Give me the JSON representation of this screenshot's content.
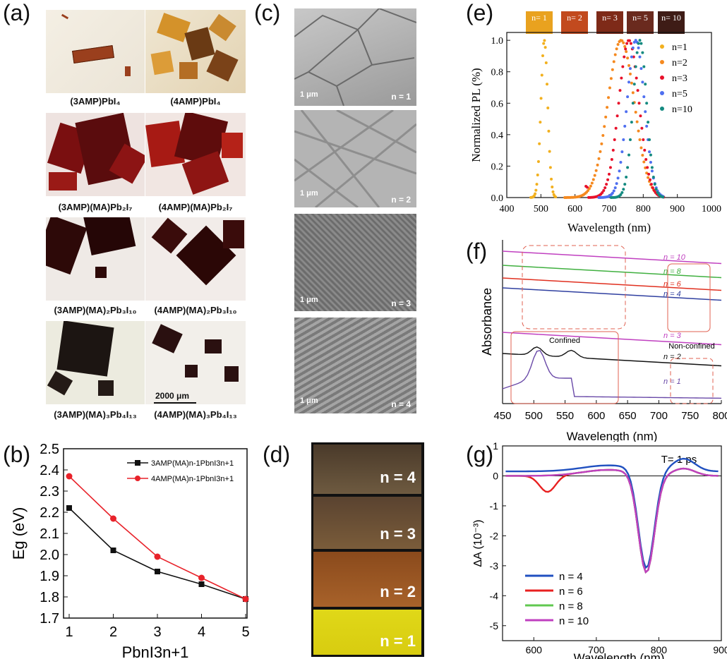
{
  "panels": {
    "a": {
      "label": "(a)",
      "captions": [
        "(3AMP)PbI₄",
        "(4AMP)PbI₄",
        "(3AMP)(MA)Pb₂I₇",
        "(4AMP)(MA)Pb₂I₇",
        "(3AMP)(MA)₂Pb₃I₁₀",
        "(4AMP)(MA)₂Pb₃I₁₀",
        "(3AMP)(MA)₃Pb₄I₁₃",
        "(4AMP)(MA)₃Pb₄I₁₃"
      ],
      "scalebar": "2000 μm"
    },
    "b": {
      "label": "(b)"
    },
    "c": {
      "label": "(c)",
      "scalebar": "1 μm",
      "images": [
        {
          "n": "n = 1"
        },
        {
          "n": "n = 2"
        },
        {
          "n": "n = 3"
        },
        {
          "n": "n = 4"
        }
      ]
    },
    "d": {
      "label": "(d)",
      "vials": [
        "n = 4",
        "n = 3",
        "n = 2",
        "n = 1"
      ]
    },
    "e": {
      "label": "(e)",
      "swatches": [
        "n= 1",
        "n= 2",
        "n= 3",
        "n= 5",
        "n= 10"
      ]
    },
    "f": {
      "label": "(f)"
    },
    "g": {
      "label": "(g)"
    }
  },
  "chart_data": [
    {
      "panel": "b",
      "type": "line",
      "xlabel": "PbnI3n+1",
      "ylabel": "Eg (eV)",
      "xlim": [
        1,
        5
      ],
      "ylim": [
        1.7,
        2.5
      ],
      "x": [
        1,
        2,
        3,
        4,
        5
      ],
      "xticks": [
        "1",
        "2",
        "3",
        "4",
        "5"
      ],
      "yticks": [
        "1.7",
        "1.8",
        "1.9",
        "2.0",
        "2.1",
        "2.2",
        "2.3",
        "2.4",
        "2.5"
      ],
      "legend_position": "top-right",
      "series": [
        {
          "name": "3AMP(MA)n-1PbnI3n+1",
          "color": "#111111",
          "marker": "square",
          "values": [
            2.22,
            2.02,
            1.92,
            1.86,
            1.79
          ]
        },
        {
          "name": "4AMP(MA)n-1PbnI3n+1",
          "color": "#e8222a",
          "marker": "circle",
          "values": [
            2.37,
            2.17,
            1.99,
            1.89,
            1.79
          ]
        }
      ]
    },
    {
      "panel": "e",
      "type": "scatter",
      "xlabel": "Wavelength (nm)",
      "ylabel": "Normalized PL (%)",
      "xlim": [
        400,
        1000
      ],
      "ylim": [
        0,
        1.05
      ],
      "xticks": [
        "400",
        "500",
        "600",
        "700",
        "800",
        "900",
        "1000"
      ],
      "yticks": [
        "0.0",
        "0.2",
        "0.4",
        "0.6",
        "0.8",
        "1.0"
      ],
      "legend_position": "top-right",
      "series": [
        {
          "name": "n=1",
          "color": "#f2b01e",
          "peak": 510
        },
        {
          "name": "n=2",
          "color": "#f5891f",
          "peak": 735
        },
        {
          "name": "n=3",
          "color": "#e8102a",
          "peak": 758
        },
        {
          "name": "n=5",
          "color": "#4f6ff0",
          "peak": 778
        },
        {
          "name": "n=10",
          "color": "#148a80",
          "peak": 790
        }
      ]
    },
    {
      "panel": "f",
      "type": "line",
      "xlabel": "Wavelength (nm)",
      "ylabel": "Absorbance",
      "xlim": [
        450,
        800
      ],
      "xticks": [
        "450",
        "500",
        "550",
        "600",
        "650",
        "700",
        "750",
        "800"
      ],
      "annotations": [
        "Confined",
        "Non-confined"
      ],
      "series": [
        {
          "name": "n = 10",
          "color": "#c040c0"
        },
        {
          "name": "n = 8",
          "color": "#40b040"
        },
        {
          "name": "n = 6",
          "color": "#e03020"
        },
        {
          "name": "n = 4",
          "color": "#3040a0"
        },
        {
          "name": "n = 3",
          "color": "#c040c0"
        },
        {
          "name": "n = 2",
          "color": "#111111"
        },
        {
          "name": "n = 1",
          "color": "#6a4aa8"
        }
      ]
    },
    {
      "panel": "g",
      "type": "line",
      "xlabel": "Wavelength (nm)",
      "ylabel": "ΔA (10⁻³)",
      "xlim": [
        550,
        900
      ],
      "ylim": [
        -5.5,
        1
      ],
      "xticks": [
        "600",
        "700",
        "800",
        "900"
      ],
      "yticks": [
        "1",
        "0",
        "-1",
        "-2",
        "-3",
        "-4",
        "-5"
      ],
      "annotation": "T= 1 ps",
      "legend_position": "bottom-left",
      "series": [
        {
          "name": "n = 4",
          "color": "#2050c0"
        },
        {
          "name": "n = 6",
          "color": "#e82020"
        },
        {
          "name": "n = 8",
          "color": "#60c850"
        },
        {
          "name": "n = 10",
          "color": "#c040c0"
        }
      ]
    }
  ]
}
